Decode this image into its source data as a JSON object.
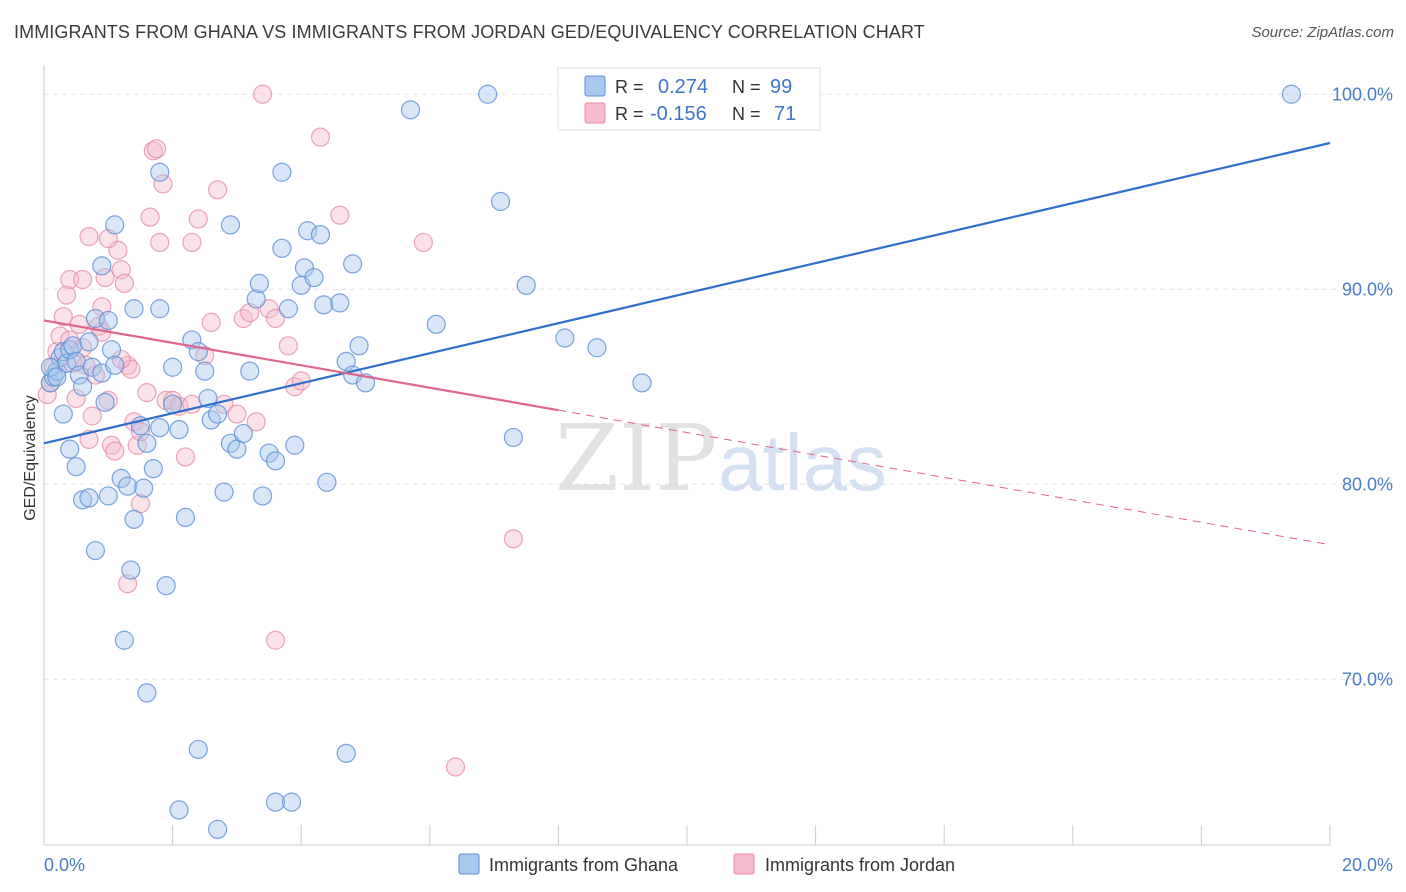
{
  "title": "IMMIGRANTS FROM GHANA VS IMMIGRANTS FROM JORDAN GED/EQUIVALENCY CORRELATION CHART",
  "source": "Source: ZipAtlas.com",
  "watermark": {
    "zip": "ZIP",
    "atlas": "atlas"
  },
  "colors": {
    "ghana_fill": "#a9c8ee",
    "ghana_stroke": "#5b8fd6",
    "ghana_line": "#2f6fcc",
    "jordan_fill": "#f6bccd",
    "jordan_stroke": "#e58fab",
    "jordan_line": "#e0648f",
    "grid": "#e3e3e3",
    "tick": "#4a7cc9"
  },
  "legend": {
    "ghana": {
      "r_label": "R =",
      "r_value": "0.274",
      "n_label": "N =",
      "n_value": "99"
    },
    "jordan": {
      "r_label": "R =",
      "r_value": "-0.156",
      "n_label": "N =",
      "n_value": "71"
    }
  },
  "chart_data": {
    "type": "scatter",
    "xlabel": "",
    "ylabel": "GED/Equivalency",
    "xlim": [
      0,
      20
    ],
    "ylim": [
      61.5,
      101.5
    ],
    "x_tick_labels": [
      {
        "value": 0,
        "label": "0.0%"
      },
      {
        "value": 20,
        "label": "20.0%"
      }
    ],
    "y_tick_labels": [
      {
        "value": 100,
        "label": "100.0%"
      },
      {
        "value": 90,
        "label": "90.0%"
      },
      {
        "value": 80,
        "label": "80.0%"
      },
      {
        "value": 70,
        "label": "70.0%"
      }
    ],
    "grid": true,
    "legend_position": "bottom",
    "series": [
      {
        "name": "Immigrants from Ghana",
        "points": [
          [
            0.1,
            85.2
          ],
          [
            0.15,
            85.5
          ],
          [
            0.2,
            85.8
          ],
          [
            0.25,
            86.5
          ],
          [
            0.3,
            86.8
          ],
          [
            0.35,
            86.2
          ],
          [
            0.4,
            86.9
          ],
          [
            0.45,
            87.1
          ],
          [
            0.5,
            86.3
          ],
          [
            0.55,
            85.6
          ],
          [
            0.6,
            85.0
          ],
          [
            0.7,
            87.3
          ],
          [
            0.75,
            86.0
          ],
          [
            0.8,
            88.5
          ],
          [
            0.9,
            85.7
          ],
          [
            0.95,
            84.2
          ],
          [
            1.0,
            88.4
          ],
          [
            1.05,
            86.9
          ],
          [
            1.1,
            86.1
          ],
          [
            0.3,
            83.6
          ],
          [
            0.4,
            81.8
          ],
          [
            0.6,
            79.2
          ],
          [
            0.7,
            79.3
          ],
          [
            0.8,
            76.6
          ],
          [
            0.5,
            80.9
          ],
          [
            1.0,
            79.4
          ],
          [
            1.2,
            80.3
          ],
          [
            1.3,
            79.9
          ],
          [
            1.4,
            78.2
          ],
          [
            1.5,
            83.0
          ],
          [
            1.6,
            82.1
          ],
          [
            1.7,
            80.8
          ],
          [
            1.8,
            82.9
          ],
          [
            1.9,
            74.8
          ],
          [
            2.0,
            84.1
          ],
          [
            2.1,
            82.8
          ],
          [
            2.2,
            78.3
          ],
          [
            2.3,
            87.4
          ],
          [
            2.4,
            86.8
          ],
          [
            2.5,
            85.8
          ],
          [
            2.55,
            84.4
          ],
          [
            2.6,
            83.3
          ],
          [
            2.7,
            83.6
          ],
          [
            2.8,
            79.6
          ],
          [
            2.9,
            82.1
          ],
          [
            3.0,
            81.8
          ],
          [
            3.1,
            82.6
          ],
          [
            3.2,
            85.8
          ],
          [
            3.3,
            89.5
          ],
          [
            3.35,
            90.3
          ],
          [
            3.4,
            79.4
          ],
          [
            3.5,
            81.6
          ],
          [
            3.6,
            81.2
          ],
          [
            3.7,
            92.1
          ],
          [
            3.8,
            89.0
          ],
          [
            3.9,
            82.0
          ],
          [
            4.0,
            90.2
          ],
          [
            4.05,
            91.1
          ],
          [
            4.1,
            93.0
          ],
          [
            4.2,
            90.6
          ],
          [
            4.3,
            92.8
          ],
          [
            4.35,
            89.2
          ],
          [
            4.4,
            80.1
          ],
          [
            4.6,
            89.3
          ],
          [
            4.7,
            86.3
          ],
          [
            4.8,
            85.6
          ],
          [
            4.9,
            87.1
          ],
          [
            5.0,
            85.2
          ],
          [
            4.8,
            91.3
          ],
          [
            1.1,
            93.3
          ],
          [
            1.4,
            89.0
          ],
          [
            1.8,
            96.0
          ],
          [
            1.8,
            89.0
          ],
          [
            2.0,
            86.0
          ],
          [
            2.9,
            93.3
          ],
          [
            3.7,
            96.0
          ],
          [
            5.7,
            99.2
          ],
          [
            6.1,
            88.2
          ],
          [
            6.9,
            100.0
          ],
          [
            7.1,
            94.5
          ],
          [
            7.3,
            82.4
          ],
          [
            7.5,
            90.2
          ],
          [
            8.1,
            87.5
          ],
          [
            8.6,
            87.0
          ],
          [
            9.3,
            85.2
          ],
          [
            19.4,
            100.0
          ],
          [
            0.1,
            86.0
          ],
          [
            0.2,
            85.5
          ],
          [
            0.9,
            91.2
          ],
          [
            1.25,
            72.0
          ],
          [
            1.6,
            69.3
          ],
          [
            2.1,
            63.3
          ],
          [
            2.4,
            66.4
          ],
          [
            2.7,
            62.3
          ],
          [
            3.6,
            63.7
          ],
          [
            3.85,
            63.7
          ],
          [
            4.7,
            66.2
          ],
          [
            1.55,
            79.8
          ],
          [
            1.35,
            75.6
          ]
        ]
      },
      {
        "name": "Immigrants from Jordan",
        "points": [
          [
            0.05,
            84.6
          ],
          [
            0.1,
            85.2
          ],
          [
            0.15,
            86.0
          ],
          [
            0.2,
            86.8
          ],
          [
            0.25,
            87.6
          ],
          [
            0.3,
            88.6
          ],
          [
            0.35,
            89.7
          ],
          [
            0.4,
            90.5
          ],
          [
            0.45,
            86.2
          ],
          [
            0.5,
            84.4
          ],
          [
            0.55,
            88.2
          ],
          [
            0.6,
            87.0
          ],
          [
            0.65,
            86.1
          ],
          [
            0.7,
            82.3
          ],
          [
            0.75,
            83.5
          ],
          [
            0.8,
            85.6
          ],
          [
            0.85,
            88.1
          ],
          [
            0.9,
            89.1
          ],
          [
            0.95,
            90.6
          ],
          [
            1.0,
            84.3
          ],
          [
            1.05,
            82.0
          ],
          [
            1.1,
            81.7
          ],
          [
            1.15,
            92.0
          ],
          [
            1.2,
            91.0
          ],
          [
            1.25,
            90.3
          ],
          [
            1.3,
            86.1
          ],
          [
            1.35,
            85.9
          ],
          [
            1.4,
            83.2
          ],
          [
            1.45,
            82.0
          ],
          [
            1.5,
            82.7
          ],
          [
            1.6,
            84.7
          ],
          [
            1.65,
            93.7
          ],
          [
            1.7,
            97.1
          ],
          [
            1.75,
            97.2
          ],
          [
            1.8,
            92.4
          ],
          [
            1.85,
            95.4
          ],
          [
            1.9,
            84.3
          ],
          [
            2.0,
            84.3
          ],
          [
            2.1,
            84.0
          ],
          [
            2.2,
            81.4
          ],
          [
            2.3,
            92.4
          ],
          [
            2.4,
            93.6
          ],
          [
            2.5,
            86.6
          ],
          [
            2.6,
            88.3
          ],
          [
            2.7,
            95.1
          ],
          [
            2.8,
            84.1
          ],
          [
            3.0,
            83.6
          ],
          [
            3.1,
            88.5
          ],
          [
            3.2,
            88.8
          ],
          [
            3.3,
            83.2
          ],
          [
            3.4,
            100.0
          ],
          [
            3.5,
            89.0
          ],
          [
            3.6,
            88.5
          ],
          [
            3.8,
            87.1
          ],
          [
            3.9,
            85.0
          ],
          [
            4.0,
            85.3
          ],
          [
            4.3,
            97.8
          ],
          [
            4.6,
            93.8
          ],
          [
            5.9,
            92.4
          ],
          [
            7.3,
            77.2
          ],
          [
            6.4,
            65.5
          ],
          [
            3.6,
            72.0
          ],
          [
            1.3,
            74.9
          ],
          [
            0.4,
            87.4
          ],
          [
            0.6,
            90.5
          ],
          [
            0.7,
            92.7
          ],
          [
            1.0,
            92.6
          ],
          [
            1.2,
            86.4
          ],
          [
            2.3,
            84.1
          ],
          [
            1.5,
            79.0
          ],
          [
            0.9,
            87.8
          ]
        ]
      }
    ],
    "trendlines": [
      {
        "series": "Immigrants from Ghana",
        "from": [
          0,
          82.1
        ],
        "to": [
          20,
          97.5
        ],
        "style": "solid"
      },
      {
        "series": "Immigrants from Jordan",
        "from": [
          0,
          88.4
        ],
        "to": [
          8.0,
          83.8
        ],
        "style": "solid"
      },
      {
        "series": "Immigrants from Jordan",
        "from": [
          8.0,
          83.8
        ],
        "to": [
          20,
          76.9
        ],
        "style": "dashed"
      }
    ]
  },
  "bottom_legend": [
    {
      "label": "Immigrants from Ghana",
      "color_key": "ghana"
    },
    {
      "label": "Immigrants from Jordan",
      "color_key": "jordan"
    }
  ]
}
